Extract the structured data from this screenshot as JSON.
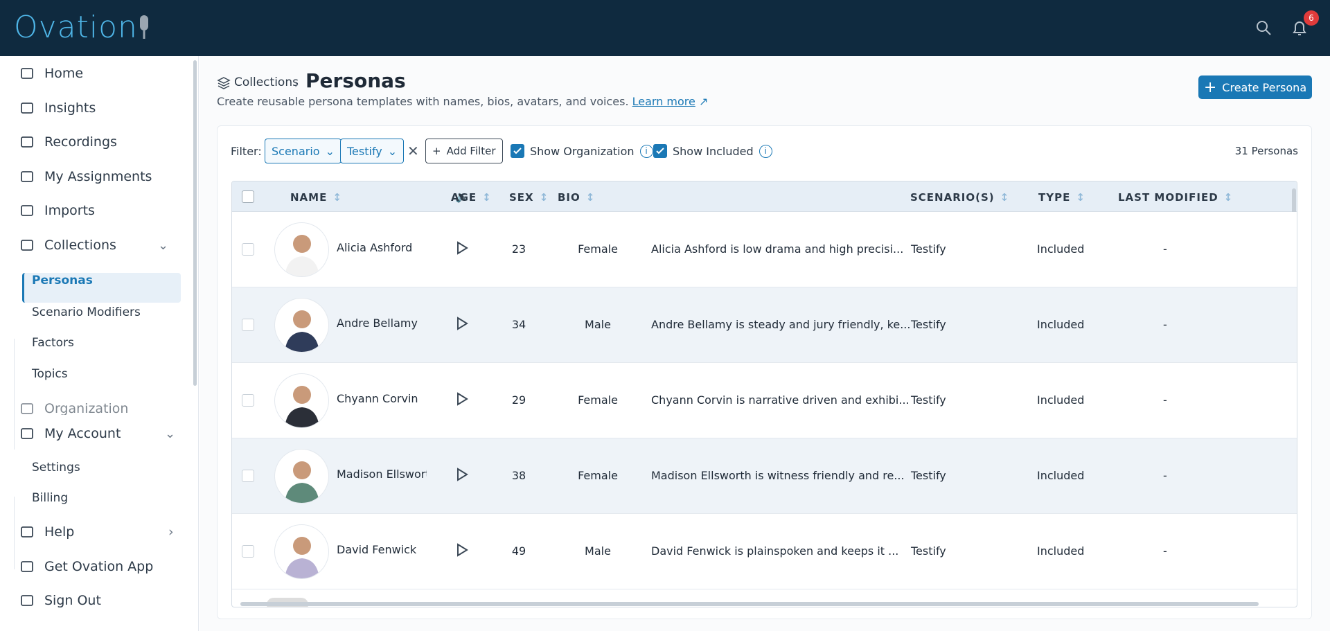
{
  "header": {
    "logo": "Ovation",
    "notification_count": "6"
  },
  "sidebar": {
    "items": [
      "Home",
      "Insights",
      "Recordings",
      "My Assignments",
      "Imports",
      "Collections"
    ],
    "collections_sub": [
      "Personas",
      "Scenario Modifiers",
      "Factors",
      "Topics"
    ],
    "organization": "Organization",
    "account": "My Account",
    "account_sub": [
      "Settings",
      "Billing"
    ],
    "bottom": [
      "Help",
      "Get Ovation App",
      "Sign Out"
    ]
  },
  "page": {
    "breadcrumb": "Collections",
    "title": "Personas",
    "subtitle": "Create reusable persona templates with names, bios, avatars, and voices.",
    "learn_more": "Learn more",
    "create_button": "Create Persona"
  },
  "filters": {
    "label": "Filter:",
    "chips": [
      "Scenario",
      "Testify"
    ],
    "add_filter": "Add Filter",
    "show_organization": "Show Organization",
    "show_included": "Show Included",
    "count": "31 Personas"
  },
  "table": {
    "columns": [
      "NAME",
      "AGE",
      "SEX",
      "BIO",
      "SCENARIO(S)",
      "TYPE",
      "LAST MODIFIED"
    ],
    "rows": [
      [
        "Alicia Ashford",
        "23",
        "Female",
        "Alicia Ashford is low drama and high precisi...",
        "Testify",
        "Included",
        "-"
      ],
      [
        "Andre Bellamy",
        "34",
        "Male",
        "Andre Bellamy is steady and jury friendly, ke...",
        "Testify",
        "Included",
        "-"
      ],
      [
        "Chyann Corvin",
        "29",
        "Female",
        "Chyann Corvin is narrative driven and exhibi...",
        "Testify",
        "Included",
        "-"
      ],
      [
        "Madison Ellsworth",
        "38",
        "Female",
        "Madison Ellsworth is witness friendly and re...",
        "Testify",
        "Included",
        "-"
      ],
      [
        "David Fenwick",
        "49",
        "Male",
        "David Fenwick is plainspoken and keeps it ...",
        "Testify",
        "Included",
        "-"
      ]
    ]
  }
}
